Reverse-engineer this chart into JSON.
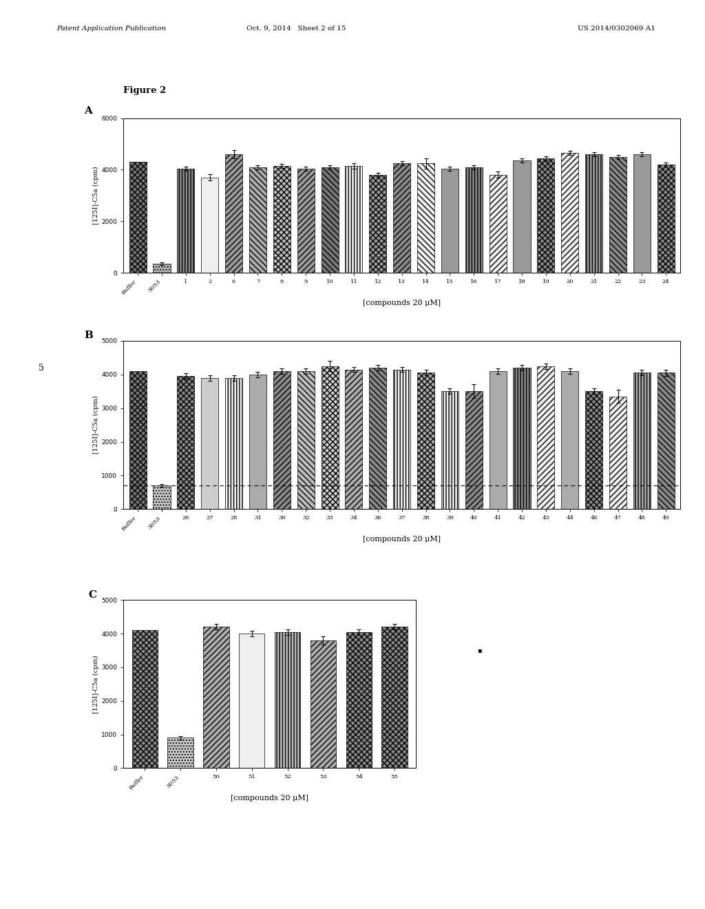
{
  "figure_title": "Figure 2",
  "header_left": "Patent Application Publication",
  "header_mid": "Oct. 9, 2014   Sheet 2 of 15",
  "header_right": "US 2014/0302069 A1",
  "panel_A": {
    "label": "A",
    "ylim": [
      0,
      6000
    ],
    "yticks": [
      0,
      2000,
      4000,
      6000
    ],
    "ylabel": "[125I]-C5a (cpm)",
    "xlabel": "[compounds 20 μM]",
    "categories": [
      "Buffer",
      "3D53",
      "1",
      "2",
      "6",
      "7",
      "8",
      "9",
      "10",
      "11",
      "12",
      "13",
      "14",
      "15",
      "16",
      "17",
      "18",
      "19",
      "20",
      "21",
      "22",
      "23",
      "24"
    ],
    "values": [
      4300,
      350,
      4050,
      3700,
      4600,
      4100,
      4150,
      4050,
      4100,
      4150,
      3800,
      4250,
      4250,
      4050,
      4100,
      3800,
      4350,
      4450,
      4650,
      4600,
      4500,
      4600,
      4200
    ],
    "errors": [
      100,
      50,
      80,
      120,
      150,
      80,
      80,
      80,
      80,
      100,
      80,
      80,
      200,
      80,
      80,
      120,
      80,
      80,
      80,
      80,
      80,
      80,
      80
    ],
    "hatches": [
      "x",
      ".",
      "|",
      "=",
      "/",
      "\\",
      "x",
      "/",
      "\\",
      "|",
      "x",
      "/",
      "\\",
      "=",
      "|",
      "/",
      "=",
      "x",
      "/",
      "|",
      "\\",
      "=",
      "x"
    ],
    "facecolors": [
      "#777777",
      "#bbbbbb",
      "#888888",
      "#eeeeee",
      "#999999",
      "#aaaaaa",
      "#bbbbbb",
      "#999999",
      "#777777",
      "#eeeeee",
      "#999999",
      "#888888",
      "#eeeeee",
      "#999999",
      "#888888",
      "#eeeeee",
      "#999999",
      "#888888",
      "#eeeeee",
      "#999999",
      "#888888",
      "#999999",
      "#888888"
    ]
  },
  "panel_B": {
    "label": "B",
    "ylim": [
      0,
      5000
    ],
    "yticks": [
      0,
      1000,
      2000,
      3000,
      4000,
      5000
    ],
    "ylabel": "[125I]-C5a (cpm)",
    "xlabel": "[compounds 20 μM]",
    "dashed_line_y": 700,
    "categories": [
      "Buffer",
      "3D53",
      "26",
      "27",
      "28",
      "31",
      "30",
      "32",
      "33",
      "34",
      "36",
      "37",
      "38",
      "39",
      "40",
      "41",
      "42",
      "43",
      "44",
      "46",
      "47",
      "48",
      "49"
    ],
    "values": [
      4100,
      700,
      3950,
      3900,
      3900,
      4000,
      4100,
      4100,
      4250,
      4150,
      4200,
      4150,
      4050,
      3500,
      3500,
      4100,
      4200,
      4250,
      4100,
      3500,
      3350,
      4050,
      4050
    ],
    "errors": [
      80,
      50,
      80,
      80,
      80,
      80,
      80,
      80,
      150,
      80,
      80,
      80,
      80,
      80,
      200,
      80,
      80,
      80,
      80,
      80,
      200,
      80,
      100
    ],
    "hatches": [
      "x",
      ".",
      "x",
      "=",
      "|",
      "=",
      "/",
      "\\",
      "x",
      "/",
      "\\",
      "|",
      "x",
      "|",
      "/",
      "=",
      "|",
      "/",
      "=",
      "x",
      "/",
      "|",
      "\\"
    ],
    "facecolors": [
      "#777777",
      "#cccccc",
      "#888888",
      "#cccccc",
      "#eeeeee",
      "#aaaaaa",
      "#888888",
      "#bbbbbb",
      "#cccccc",
      "#aaaaaa",
      "#888888",
      "#eeeeee",
      "#aaaaaa",
      "#eeeeee",
      "#888888",
      "#aaaaaa",
      "#888888",
      "#eeeeee",
      "#aaaaaa",
      "#888888",
      "#eeeeee",
      "#aaaaaa",
      "#888888"
    ]
  },
  "panel_C": {
    "label": "C",
    "ylim": [
      0,
      5000
    ],
    "yticks": [
      0,
      1000,
      2000,
      3000,
      4000,
      5000
    ],
    "ylabel": "[125I]-C5a (cpm)",
    "xlabel": "[compounds 20 μM]",
    "categories": [
      "Buffer",
      "3D53",
      "50",
      "51",
      "52",
      "53",
      "54",
      "55"
    ],
    "values": [
      4100,
      900,
      4200,
      4000,
      4050,
      3800,
      4050,
      4200
    ],
    "errors": [
      80,
      50,
      80,
      80,
      80,
      120,
      80,
      80
    ],
    "hatches": [
      "x",
      ".",
      "/",
      "=",
      "|",
      "/",
      "x",
      "x"
    ],
    "facecolors": [
      "#888888",
      "#cccccc",
      "#aaaaaa",
      "#eeeeee",
      "#bbbbbb",
      "#aaaaaa",
      "#888888",
      "#888888"
    ]
  },
  "note_5": "5"
}
